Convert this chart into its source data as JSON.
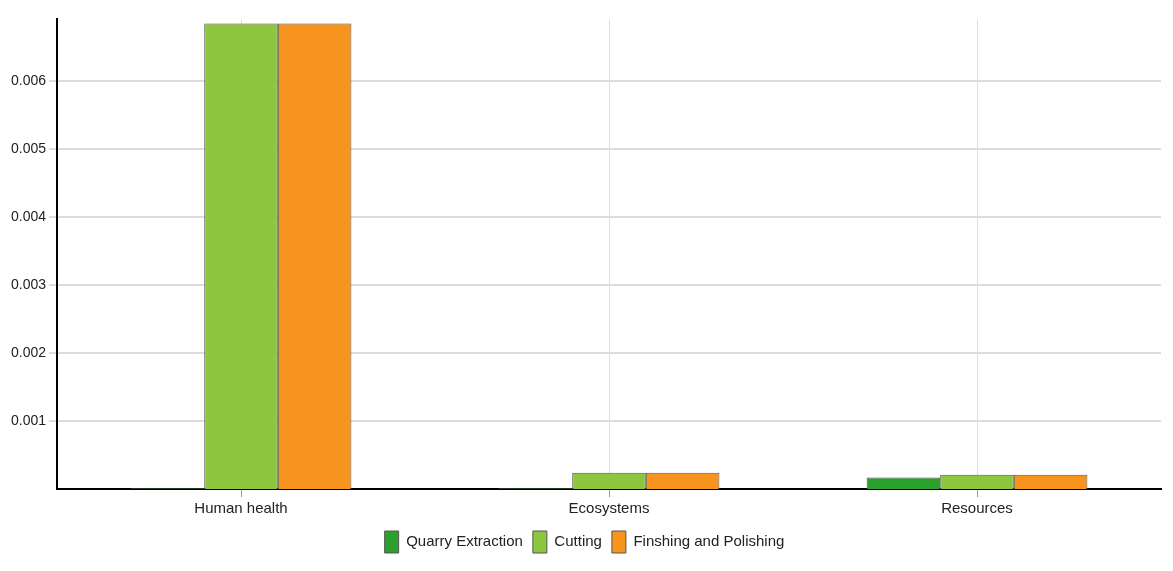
{
  "chart_data": {
    "type": "bar",
    "categories": [
      "Human health",
      "Ecosystems",
      "Resources"
    ],
    "series": [
      {
        "name": "Quarry Extraction",
        "color": "#2ca02c",
        "values": [
          1e-05,
          1e-05,
          0.00017
        ]
      },
      {
        "name": "Cutting",
        "color": "#8dc63f",
        "values": [
          0.00684,
          0.00024,
          0.00021
        ]
      },
      {
        "name": "Finshing and Polishing",
        "color": "#f7941d",
        "values": [
          0.00684,
          0.00024,
          0.00021
        ]
      }
    ],
    "ylim": [
      0,
      0.0069
    ],
    "yticks": [
      0.001,
      0.002,
      0.003,
      0.004,
      0.005,
      0.006
    ],
    "grid": true,
    "legend": "bottom"
  }
}
